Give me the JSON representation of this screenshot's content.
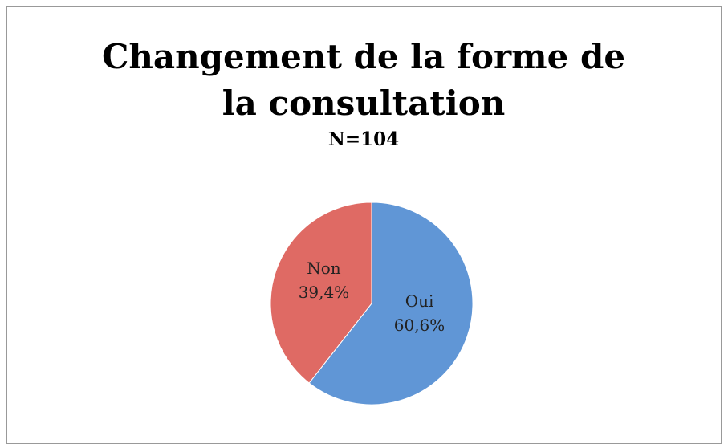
{
  "chart_data": {
    "type": "pie",
    "title": "Changement de la forme de la consultation",
    "subtitle": "N=104",
    "categories": [
      "Oui",
      "Non"
    ],
    "values": [
      60.6,
      39.4
    ],
    "value_labels": [
      "60,6%",
      "39,4%"
    ],
    "colors": [
      "#6096d6",
      "#df6a64"
    ]
  }
}
